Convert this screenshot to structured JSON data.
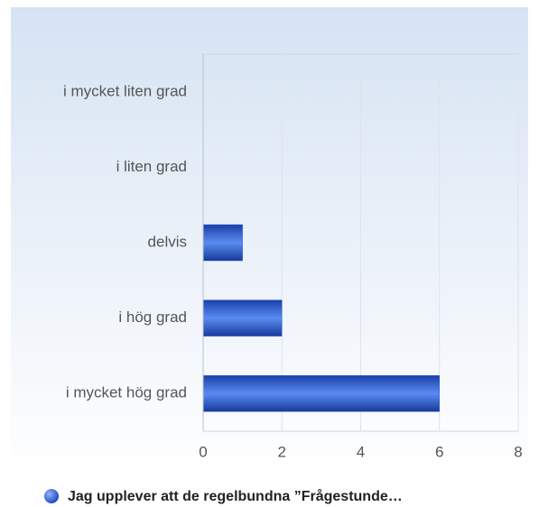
{
  "chart_data": {
    "type": "bar",
    "orientation": "horizontal",
    "categories": [
      "i mycket liten grad",
      "i liten grad",
      "delvis",
      "i hög grad",
      "i mycket hög grad"
    ],
    "series": [
      {
        "name": "Jag upplever att de regelbundna ”Frågestunde…",
        "color": "#2f63d8",
        "values": [
          0,
          0,
          1,
          2,
          6
        ]
      }
    ],
    "xlim": [
      0,
      8
    ],
    "xticks": [
      0,
      2,
      4,
      6,
      8
    ],
    "grid": true,
    "legend": "bottom"
  }
}
